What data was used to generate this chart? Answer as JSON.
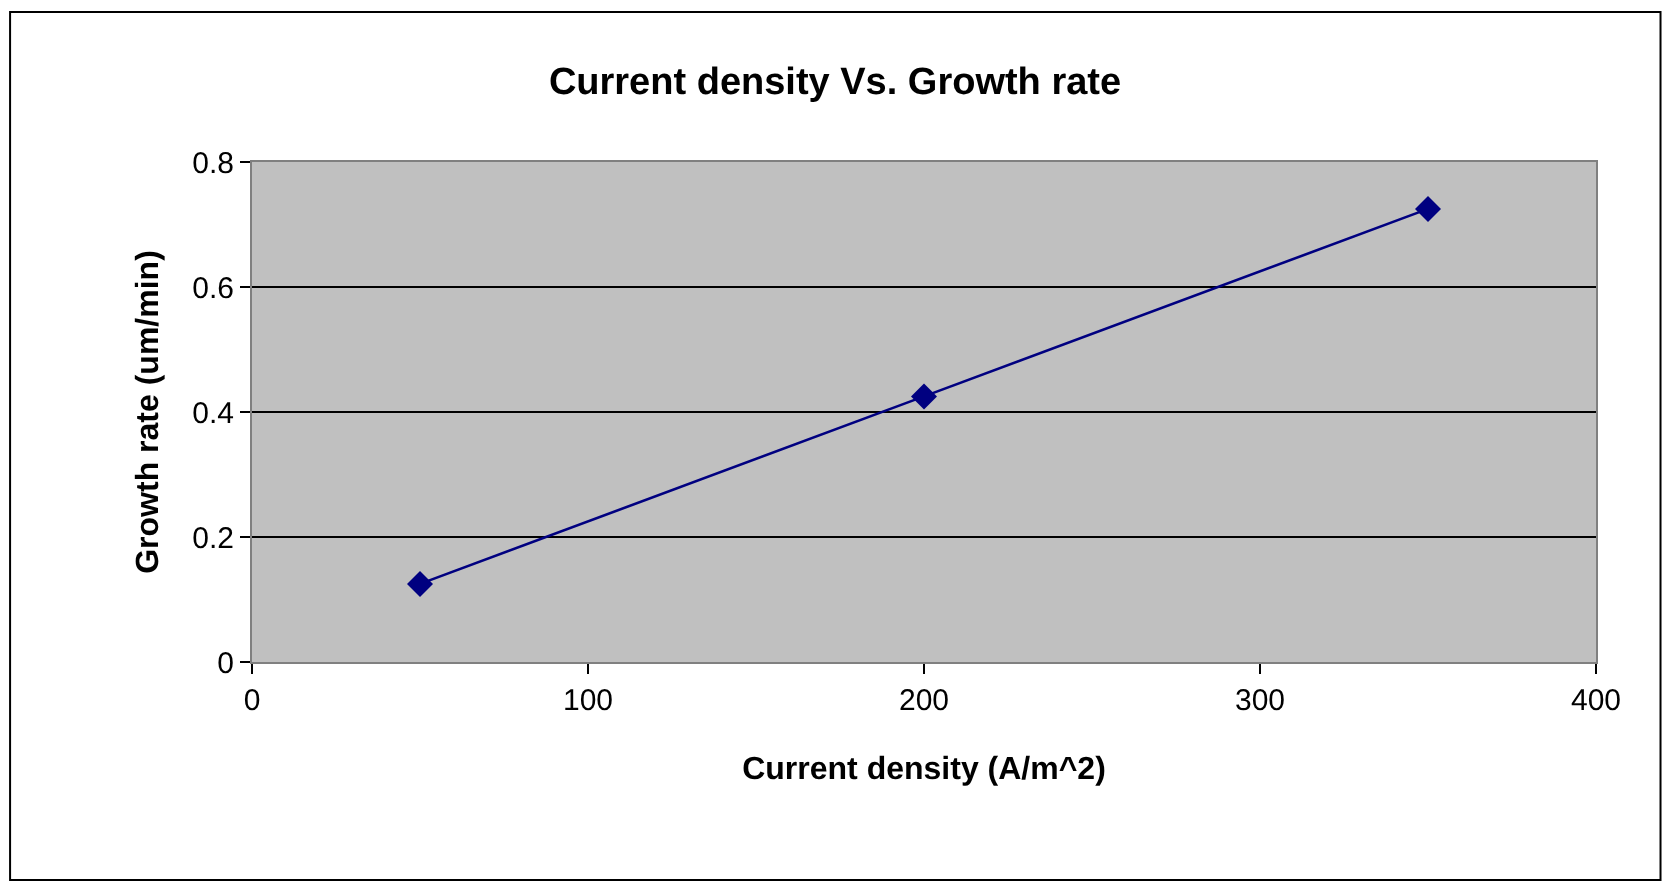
{
  "chart_data": {
    "type": "line",
    "title": "Current density Vs. Growth rate",
    "xlabel": "Current density (A/m^2)",
    "ylabel": "Growth rate (um/min)",
    "x": [
      50,
      200,
      350
    ],
    "series": [
      {
        "color": "#000080",
        "values": [
          0.125,
          0.425,
          0.725
        ]
      }
    ],
    "xlim": [
      0,
      400
    ],
    "xticks": [
      0,
      100,
      200,
      300,
      400
    ],
    "ylim": [
      0,
      0.8
    ],
    "yticks": [
      0,
      0.2,
      0.4,
      0.6,
      0.8
    ],
    "grid": "y",
    "marker": "diamond",
    "line_style": "solid"
  }
}
